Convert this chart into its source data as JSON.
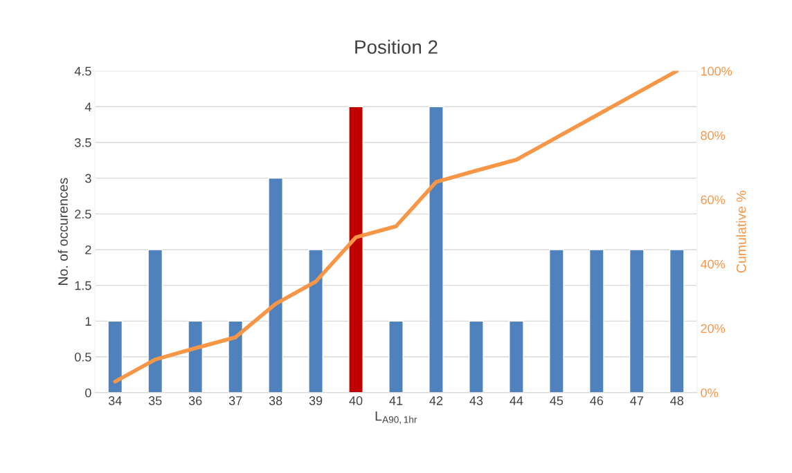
{
  "chart_data": {
    "type": "bar",
    "title": "Position 2",
    "xlabel": "L$_{A90,1hr}$",
    "ylabel": "No. of occurences",
    "y2label": "Cumulative %",
    "categories": [
      "34",
      "35",
      "36",
      "37",
      "38",
      "39",
      "40",
      "41",
      "42",
      "43",
      "44",
      "45",
      "46",
      "47",
      "48"
    ],
    "series": [
      {
        "colors": [
          "#4f81bd",
          "#4f81bd",
          "#4f81bd",
          "#4f81bd",
          "#4f81bd",
          "#4f81bd",
          "#c00000",
          "#4f81bd",
          "#4f81bd",
          "#4f81bd",
          "#4f81bd",
          "#4f81bd",
          "#4f81bd",
          "#4f81bd",
          "#4f81bd"
        ],
        "values": [
          1,
          2,
          1,
          1,
          3,
          2,
          4,
          1,
          4,
          1,
          1,
          2,
          2,
          2,
          2
        ]
      },
      {
        "type": "line",
        "axis": "y2",
        "color": "#f79646",
        "values": [
          3.4,
          10.3,
          13.8,
          17.2,
          27.6,
          34.5,
          48.3,
          51.7,
          65.5,
          69.0,
          72.4,
          79.3,
          86.2,
          93.1,
          100
        ]
      }
    ],
    "ylim": [
      0,
      4.5
    ],
    "yticks": [
      0,
      0.5,
      1,
      1.5,
      2,
      2.5,
      3,
      3.5,
      4,
      4.5
    ],
    "y2lim": [
      0,
      100
    ],
    "y2ticks": [
      {
        "value": 0,
        "label": "0%"
      },
      {
        "value": 20,
        "label": "20%"
      },
      {
        "value": 40,
        "label": "40%"
      },
      {
        "value": 60,
        "label": "60%"
      },
      {
        "value": 80,
        "label": "80%"
      },
      {
        "value": 100,
        "label": "100%"
      }
    ],
    "grid": "y",
    "legend": false,
    "marker": "none",
    "line_style": "solid"
  }
}
